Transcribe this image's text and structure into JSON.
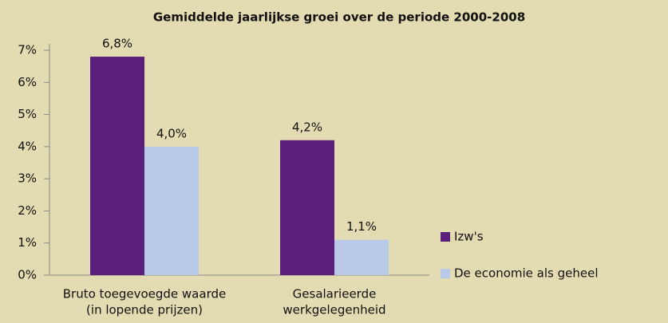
{
  "chart_data": {
    "type": "bar",
    "title": "Gemiddelde jaarlijkse groei over de periode 2000-2008",
    "categories": [
      [
        "Bruto toegevoegde waarde",
        "(in lopende prijzen)"
      ],
      [
        "Gesalarieerde",
        "werkgelegenheid"
      ]
    ],
    "series": [
      {
        "name": "Izw's",
        "color": "#5a1f7a",
        "values": [
          6.8,
          4.2
        ],
        "value_labels": [
          "6,8%",
          "4,2%"
        ]
      },
      {
        "name": "De economie als geheel",
        "color": "#b9c9e8",
        "values": [
          4.0,
          1.1
        ],
        "value_labels": [
          "4,0%",
          "1,1%"
        ]
      }
    ],
    "ylim": [
      0,
      7
    ],
    "yticks": [
      {
        "value": 0,
        "label": "0%"
      },
      {
        "value": 1,
        "label": "1%"
      },
      {
        "value": 2,
        "label": "2%"
      },
      {
        "value": 3,
        "label": "3%"
      },
      {
        "value": 4,
        "label": "4%"
      },
      {
        "value": 5,
        "label": "5%"
      },
      {
        "value": 6,
        "label": "6%"
      },
      {
        "value": 7,
        "label": "7%"
      }
    ],
    "legend": "right"
  }
}
